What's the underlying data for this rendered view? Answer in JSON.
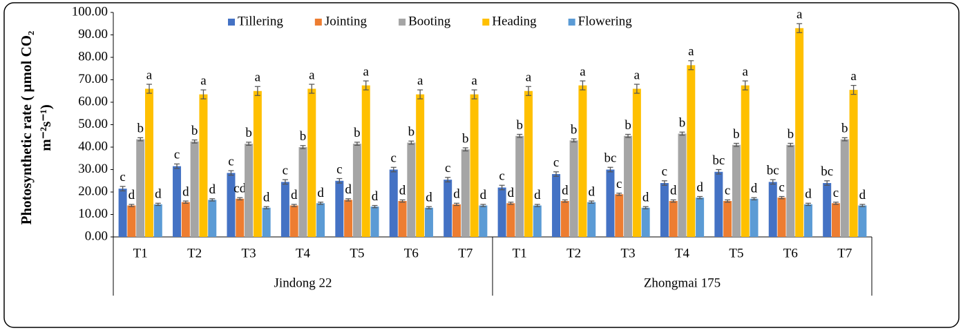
{
  "chart_data": {
    "type": "bar",
    "y_label": [
      "Photosynthetic rate ( μmol CO₂",
      "m⁻²s⁻¹)"
    ],
    "groups": [
      {
        "name": "Jindong 22",
        "categories": [
          "T1",
          "T2",
          "T3",
          "T4",
          "T5",
          "T6",
          "T7"
        ]
      },
      {
        "name": "Zhongmai 175",
        "categories": [
          "T1",
          "T2",
          "T3",
          "T4",
          "T5",
          "T6",
          "T7"
        ]
      }
    ],
    "series": [
      {
        "name": "Tillering",
        "color": "#4472c4",
        "values": [
          21.5,
          31.5,
          28.5,
          24.5,
          25,
          30,
          25.5,
          22,
          28,
          30,
          24,
          29,
          24.5,
          24
        ],
        "errors": [
          1,
          1,
          1,
          1,
          1,
          1,
          1,
          1,
          1,
          1,
          1,
          1,
          1,
          1
        ],
        "letters": [
          "c",
          "c",
          "c",
          "c",
          "c",
          "c",
          "c",
          "c",
          "c",
          "bc",
          "c",
          "bc",
          "bc",
          "bc"
        ]
      },
      {
        "name": "Jointing",
        "color": "#ed7d31",
        "values": [
          14,
          15.5,
          17,
          14,
          16.5,
          16,
          14.5,
          15,
          16,
          19,
          16,
          16,
          17.5,
          15
        ],
        "errors": [
          0.5,
          0.5,
          0.5,
          0.5,
          0.5,
          0.5,
          0.5,
          0.5,
          0.5,
          0.5,
          0.5,
          0.5,
          0.5,
          0.5
        ],
        "letters": [
          "d",
          "d",
          "cd",
          "d",
          "d",
          "d",
          "d",
          "d",
          "d",
          "c",
          "d",
          "c",
          "c",
          "c"
        ]
      },
      {
        "name": "Booting",
        "color": "#a5a5a5",
        "values": [
          43.5,
          42.5,
          41.5,
          40,
          41.5,
          42,
          39,
          45,
          43,
          45,
          46,
          41,
          41,
          43.5
        ],
        "errors": [
          0.7,
          0.7,
          0.7,
          0.7,
          0.7,
          0.7,
          0.7,
          0.7,
          0.7,
          0.7,
          0.7,
          0.7,
          0.7,
          0.7
        ],
        "letters": [
          "b",
          "b",
          "b",
          "b",
          "b",
          "b",
          "b",
          "b",
          "b",
          "b",
          "b",
          "b",
          "b",
          "b"
        ]
      },
      {
        "name": "Heading",
        "color": "#ffc000",
        "values": [
          66,
          63.5,
          65,
          66,
          67.5,
          63.5,
          63.5,
          65,
          67.5,
          66,
          76.5,
          67.5,
          93,
          65.5
        ],
        "errors": [
          2,
          2,
          2,
          2,
          2,
          2,
          2,
          2,
          2,
          2,
          2,
          2,
          2,
          2
        ],
        "letters": [
          "a",
          "a",
          "a",
          "a",
          "a",
          "a",
          "a",
          "a",
          "a",
          "a",
          "a",
          "a",
          "a",
          "a"
        ]
      },
      {
        "name": "Flowering",
        "color": "#5b9bd5",
        "values": [
          14.5,
          16.5,
          13,
          15,
          13.5,
          13,
          14,
          14,
          15.5,
          13,
          17.5,
          17,
          14.5,
          14
        ],
        "errors": [
          0.5,
          0.5,
          0.5,
          0.5,
          0.5,
          0.5,
          0.5,
          0.5,
          0.5,
          0.5,
          0.5,
          0.5,
          0.5,
          0.5
        ],
        "letters": [
          "d",
          "d",
          "d",
          "d",
          "d",
          "d",
          "d",
          "d",
          "d",
          "d",
          "d",
          "d",
          "d",
          "d"
        ]
      }
    ],
    "ylim": [
      0,
      100
    ],
    "yticks": [
      {
        "value": 0,
        "label": "0.00"
      },
      {
        "value": 10,
        "label": "10.00"
      },
      {
        "value": 20,
        "label": "20.00"
      },
      {
        "value": 30,
        "label": "30.00"
      },
      {
        "value": 40,
        "label": "40.00"
      },
      {
        "value": 50,
        "label": "50.00"
      },
      {
        "value": 60,
        "label": "60.00"
      },
      {
        "value": 70,
        "label": "70.00"
      },
      {
        "value": 80,
        "label": "80.00"
      },
      {
        "value": 90,
        "label": "90.00"
      },
      {
        "value": 100,
        "label": "100.00"
      }
    ],
    "grid": false,
    "legend": "top"
  }
}
